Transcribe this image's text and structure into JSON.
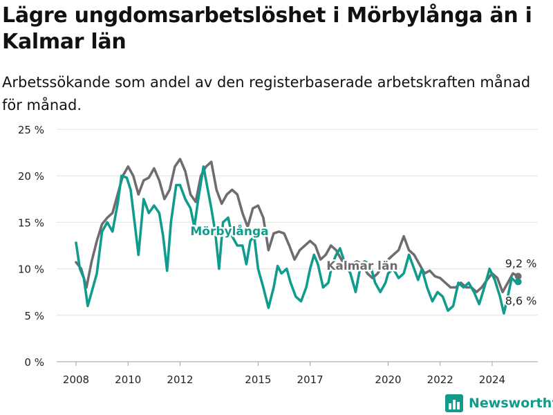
{
  "header": {
    "title": "Lägre ungdomsarbetslöshet i Mörbylånga än i Kalmar län",
    "subtitle": "Arbetssökande som andel av den registerbaserade arbetskraften månad för månad."
  },
  "brand": {
    "name": "Newsworthy",
    "icon": "bar-chart-logo-icon",
    "color": "#11998a"
  },
  "chart_data": {
    "type": "line",
    "x_unit": "year (decimal)",
    "xlim": [
      2006.8,
      2026.0
    ],
    "ylim": [
      0,
      25
    ],
    "yticks": [
      0,
      5,
      10,
      15,
      20,
      25
    ],
    "ytick_labels": [
      "0 %",
      "5 %",
      "10 %",
      "15 %",
      "20 %",
      "25 %"
    ],
    "xticks": [
      2008,
      2010,
      2012,
      2015,
      2017,
      2020,
      2022,
      2024
    ],
    "xtick_labels": [
      "2008",
      "2010",
      "2012",
      "2015",
      "2017",
      "2020",
      "2022",
      "2024"
    ],
    "grid": "horizontal",
    "series": [
      {
        "name": "Kalmar län",
        "color": "#706b70",
        "end_label": "9,2 %",
        "points": [
          [
            2008.0,
            10.7
          ],
          [
            2008.2,
            10.0
          ],
          [
            2008.4,
            8.0
          ],
          [
            2008.6,
            10.8
          ],
          [
            2008.8,
            13.0
          ],
          [
            2009.0,
            14.8
          ],
          [
            2009.2,
            15.5
          ],
          [
            2009.4,
            16.0
          ],
          [
            2009.6,
            18.0
          ],
          [
            2009.8,
            20.0
          ],
          [
            2010.0,
            21.0
          ],
          [
            2010.2,
            20.0
          ],
          [
            2010.4,
            18.0
          ],
          [
            2010.6,
            19.5
          ],
          [
            2010.8,
            19.8
          ],
          [
            2011.0,
            20.8
          ],
          [
            2011.2,
            19.5
          ],
          [
            2011.4,
            17.5
          ],
          [
            2011.6,
            18.5
          ],
          [
            2011.8,
            21.0
          ],
          [
            2012.0,
            21.8
          ],
          [
            2012.2,
            20.5
          ],
          [
            2012.4,
            18.0
          ],
          [
            2012.6,
            17.2
          ],
          [
            2012.8,
            20.0
          ],
          [
            2013.0,
            21.0
          ],
          [
            2013.2,
            21.5
          ],
          [
            2013.4,
            18.5
          ],
          [
            2013.6,
            17.0
          ],
          [
            2013.8,
            18.0
          ],
          [
            2014.0,
            18.5
          ],
          [
            2014.2,
            18.0
          ],
          [
            2014.4,
            16.0
          ],
          [
            2014.6,
            14.5
          ],
          [
            2014.8,
            16.5
          ],
          [
            2015.0,
            16.8
          ],
          [
            2015.2,
            15.5
          ],
          [
            2015.4,
            12.0
          ],
          [
            2015.6,
            13.8
          ],
          [
            2015.8,
            14.0
          ],
          [
            2016.0,
            13.8
          ],
          [
            2016.2,
            12.5
          ],
          [
            2016.4,
            11.0
          ],
          [
            2016.6,
            12.0
          ],
          [
            2016.8,
            12.5
          ],
          [
            2017.0,
            13.0
          ],
          [
            2017.2,
            12.5
          ],
          [
            2017.4,
            11.0
          ],
          [
            2017.6,
            11.5
          ],
          [
            2017.8,
            12.5
          ],
          [
            2018.0,
            12.0
          ],
          [
            2018.2,
            11.0
          ],
          [
            2018.4,
            10.0
          ],
          [
            2018.6,
            10.5
          ],
          [
            2018.8,
            10.8
          ],
          [
            2019.0,
            10.5
          ],
          [
            2019.2,
            9.5
          ],
          [
            2019.4,
            9.0
          ],
          [
            2019.6,
            9.5
          ],
          [
            2019.8,
            10.5
          ],
          [
            2020.0,
            11.0
          ],
          [
            2020.2,
            11.5
          ],
          [
            2020.4,
            12.0
          ],
          [
            2020.6,
            13.5
          ],
          [
            2020.8,
            12.0
          ],
          [
            2021.0,
            11.5
          ],
          [
            2021.2,
            10.5
          ],
          [
            2021.4,
            9.5
          ],
          [
            2021.6,
            9.8
          ],
          [
            2021.8,
            9.2
          ],
          [
            2022.0,
            9.0
          ],
          [
            2022.2,
            8.5
          ],
          [
            2022.4,
            8.0
          ],
          [
            2022.6,
            8.0
          ],
          [
            2022.8,
            8.5
          ],
          [
            2023.0,
            8.0
          ],
          [
            2023.2,
            8.0
          ],
          [
            2023.4,
            7.5
          ],
          [
            2023.6,
            8.0
          ],
          [
            2023.8,
            8.8
          ],
          [
            2024.0,
            9.5
          ],
          [
            2024.2,
            9.0
          ],
          [
            2024.4,
            7.5
          ],
          [
            2024.6,
            8.5
          ],
          [
            2024.8,
            9.5
          ],
          [
            2025.0,
            9.2
          ]
        ]
      },
      {
        "name": "Mörbylånga",
        "color": "#0f9c8c",
        "end_label": "8,6 %",
        "points": [
          [
            2008.0,
            12.8
          ],
          [
            2008.15,
            10.0
          ],
          [
            2008.3,
            9.0
          ],
          [
            2008.45,
            6.0
          ],
          [
            2008.6,
            7.5
          ],
          [
            2008.8,
            9.5
          ],
          [
            2009.0,
            14.0
          ],
          [
            2009.2,
            15.0
          ],
          [
            2009.4,
            14.0
          ],
          [
            2009.6,
            17.0
          ],
          [
            2009.75,
            20.0
          ],
          [
            2009.95,
            19.8
          ],
          [
            2010.1,
            18.5
          ],
          [
            2010.25,
            15.0
          ],
          [
            2010.4,
            11.5
          ],
          [
            2010.6,
            17.5
          ],
          [
            2010.8,
            16.0
          ],
          [
            2011.0,
            16.8
          ],
          [
            2011.2,
            16.0
          ],
          [
            2011.35,
            13.5
          ],
          [
            2011.5,
            9.8
          ],
          [
            2011.65,
            15.0
          ],
          [
            2011.85,
            19.0
          ],
          [
            2012.0,
            19.0
          ],
          [
            2012.2,
            17.5
          ],
          [
            2012.4,
            16.5
          ],
          [
            2012.55,
            14.5
          ],
          [
            2012.7,
            17.5
          ],
          [
            2012.9,
            21.0
          ],
          [
            2013.0,
            19.5
          ],
          [
            2013.2,
            16.5
          ],
          [
            2013.35,
            14.0
          ],
          [
            2013.5,
            10.0
          ],
          [
            2013.65,
            15.0
          ],
          [
            2013.85,
            15.5
          ],
          [
            2014.0,
            13.5
          ],
          [
            2014.2,
            12.5
          ],
          [
            2014.4,
            12.5
          ],
          [
            2014.55,
            10.5
          ],
          [
            2014.7,
            13.0
          ],
          [
            2014.85,
            13.5
          ],
          [
            2015.0,
            10.0
          ],
          [
            2015.2,
            8.0
          ],
          [
            2015.4,
            5.8
          ],
          [
            2015.6,
            8.0
          ],
          [
            2015.75,
            10.3
          ],
          [
            2015.9,
            9.5
          ],
          [
            2016.1,
            10.0
          ],
          [
            2016.25,
            8.5
          ],
          [
            2016.45,
            7.0
          ],
          [
            2016.65,
            6.5
          ],
          [
            2016.85,
            8.0
          ],
          [
            2017.0,
            10.0
          ],
          [
            2017.15,
            11.5
          ],
          [
            2017.3,
            10.5
          ],
          [
            2017.5,
            8.0
          ],
          [
            2017.7,
            8.5
          ],
          [
            2017.85,
            10.5
          ],
          [
            2018.0,
            11.5
          ],
          [
            2018.15,
            12.2
          ],
          [
            2018.35,
            10.5
          ],
          [
            2018.55,
            9.5
          ],
          [
            2018.75,
            7.5
          ],
          [
            2018.95,
            10.5
          ],
          [
            2019.1,
            10.8
          ],
          [
            2019.3,
            10.5
          ],
          [
            2019.5,
            8.5
          ],
          [
            2019.7,
            7.5
          ],
          [
            2019.9,
            8.5
          ],
          [
            2020.0,
            9.5
          ],
          [
            2020.2,
            10.0
          ],
          [
            2020.4,
            9.0
          ],
          [
            2020.6,
            9.5
          ],
          [
            2020.8,
            11.5
          ],
          [
            2021.0,
            10.0
          ],
          [
            2021.15,
            8.8
          ],
          [
            2021.3,
            10.0
          ],
          [
            2021.5,
            8.0
          ],
          [
            2021.7,
            6.5
          ],
          [
            2021.9,
            7.5
          ],
          [
            2022.1,
            7.0
          ],
          [
            2022.3,
            5.5
          ],
          [
            2022.5,
            6.0
          ],
          [
            2022.7,
            8.5
          ],
          [
            2022.9,
            8.0
          ],
          [
            2023.1,
            8.5
          ],
          [
            2023.3,
            7.5
          ],
          [
            2023.5,
            6.2
          ],
          [
            2023.7,
            8.0
          ],
          [
            2023.9,
            10.0
          ],
          [
            2024.1,
            8.8
          ],
          [
            2024.3,
            7.0
          ],
          [
            2024.45,
            5.2
          ],
          [
            2024.6,
            7.0
          ],
          [
            2024.75,
            9.0
          ],
          [
            2024.9,
            8.6
          ],
          [
            2025.0,
            8.6
          ]
        ]
      }
    ],
    "series_labels": [
      {
        "series": "Mörbylånga",
        "text": "Mörbylånga",
        "at": [
          2013.9,
          13.6
        ]
      },
      {
        "series": "Kalmar län",
        "text": "Kalmar län",
        "at": [
          2019.0,
          9.9
        ]
      }
    ]
  }
}
